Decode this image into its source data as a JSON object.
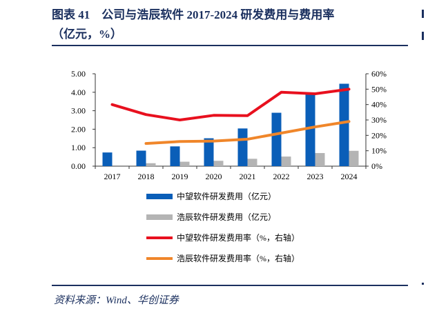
{
  "title_line1": "图表 41　公司与浩辰软件 2017-2024 研发费用与费用率",
  "title_line2": "（亿元，%）",
  "source": "资料来源：Wind、华创证券",
  "chart_data": {
    "type": "bar+line",
    "categories": [
      "2017",
      "2018",
      "2019",
      "2020",
      "2021",
      "2022",
      "2023",
      "2024"
    ],
    "y_left": {
      "range": [
        0,
        5
      ],
      "ticks": [
        "0.00",
        "1.00",
        "2.00",
        "3.00",
        "4.00",
        "5.00"
      ]
    },
    "y_right": {
      "range": [
        0,
        60
      ],
      "ticks": [
        "0%",
        "10%",
        "20%",
        "30%",
        "40%",
        "50%",
        "60%"
      ]
    },
    "grid": false,
    "legend_position": "bottom",
    "series": [
      {
        "name": "中望软件研发费用（亿元）",
        "type": "bar",
        "axis": "left",
        "color": "#0a5eb8",
        "values": [
          0.74,
          0.84,
          1.07,
          1.51,
          2.04,
          2.89,
          3.9,
          4.46
        ]
      },
      {
        "name": "浩辰软件研发费用（亿元）",
        "type": "bar",
        "axis": "left",
        "color": "#b4b4b4",
        "values": [
          null,
          0.16,
          0.24,
          0.29,
          0.4,
          0.52,
          0.71,
          0.83
        ]
      },
      {
        "name": "中望软件研发费用率（%，右轴）",
        "type": "line",
        "axis": "right",
        "color": "#e8101e",
        "values": [
          40,
          33.5,
          30,
          33,
          32.8,
          48,
          47,
          50
        ]
      },
      {
        "name": "浩辰软件研发费用率（%，右轴）",
        "type": "line",
        "axis": "right",
        "color": "#f0862a",
        "values": [
          null,
          14.7,
          16,
          16.3,
          17.5,
          21.5,
          25.5,
          29
        ]
      }
    ]
  }
}
